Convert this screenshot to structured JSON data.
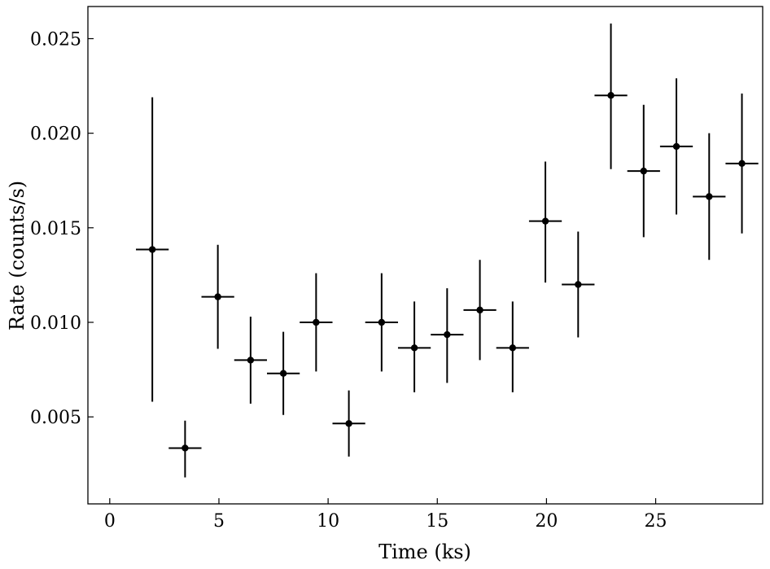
{
  "chart_data": {
    "type": "scatter",
    "title": "",
    "xlabel": "Time (ks)",
    "ylabel": "Rate (counts/s)",
    "xlim": [
      -1.0,
      29.9
    ],
    "ylim": [
      0.0004,
      0.0267
    ],
    "x_ticks": [
      0,
      5,
      10,
      15,
      20,
      25
    ],
    "x_tick_labels": [
      "0",
      "5",
      "10",
      "15",
      "20",
      "25"
    ],
    "y_ticks": [
      0.005,
      0.01,
      0.015,
      0.02,
      0.025
    ],
    "y_tick_labels": [
      "0.005",
      "0.010",
      "0.015",
      "0.020",
      "0.025"
    ],
    "grid": false,
    "marker_color": "#000000",
    "series": [
      {
        "x": [
          1.95,
          3.45,
          4.95,
          6.45,
          7.95,
          9.45,
          10.95,
          12.45,
          13.95,
          15.45,
          16.95,
          18.45,
          19.95,
          21.45,
          22.95,
          24.45,
          25.95,
          27.45,
          28.95
        ],
        "y": [
          0.01385,
          0.00335,
          0.01135,
          0.008,
          0.0073,
          0.01,
          0.00465,
          0.01,
          0.00865,
          0.00935,
          0.01065,
          0.00865,
          0.01535,
          0.012,
          0.022,
          0.018,
          0.0193,
          0.01665,
          0.0184
        ],
        "xerr": [
          0.75,
          0.75,
          0.75,
          0.75,
          0.75,
          0.75,
          0.75,
          0.75,
          0.75,
          0.75,
          0.75,
          0.75,
          0.75,
          0.75,
          0.75,
          0.75,
          0.75,
          0.75,
          0.75
        ],
        "y_low": [
          0.0058,
          0.0018,
          0.0086,
          0.0057,
          0.0051,
          0.0074,
          0.0029,
          0.0074,
          0.0063,
          0.0068,
          0.008,
          0.0063,
          0.0121,
          0.0092,
          0.0181,
          0.0145,
          0.0157,
          0.0133,
          0.0147
        ],
        "y_high": [
          0.0219,
          0.0048,
          0.0141,
          0.0103,
          0.0095,
          0.0126,
          0.0064,
          0.0126,
          0.0111,
          0.0118,
          0.0133,
          0.0111,
          0.0185,
          0.0148,
          0.0258,
          0.0215,
          0.0229,
          0.02,
          0.0221
        ]
      }
    ]
  }
}
